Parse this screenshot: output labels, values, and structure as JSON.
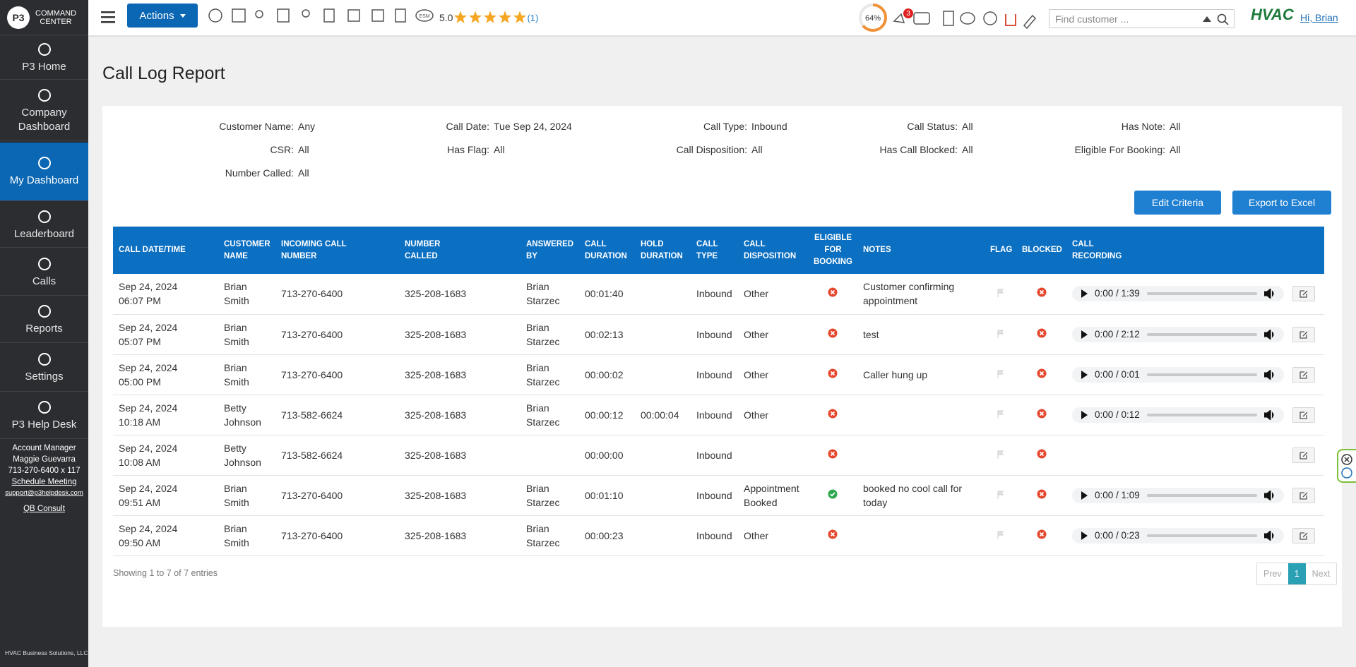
{
  "sidebar": {
    "logo": {
      "brand": "COMMAND",
      "sub": "CENTER"
    },
    "nav": [
      {
        "label": "P3 Home",
        "active": false
      },
      {
        "label": "Company Dashboard",
        "active": false
      },
      {
        "label": "My Dashboard",
        "active": true
      },
      {
        "label": "Leaderboard",
        "active": false
      },
      {
        "label": "Calls",
        "active": false
      },
      {
        "label": "Reports",
        "active": false
      },
      {
        "label": "Settings",
        "active": false
      },
      {
        "label": "P3 Help Desk",
        "active": false
      }
    ],
    "account": {
      "title": "Account Manager",
      "name": "Maggie Guevarra",
      "phone": "713-270-6400 x 117",
      "schedule": "Schedule Meeting",
      "email": "support@p3helpdesk.com",
      "qb": "QB Consult"
    },
    "footer": "HVAC Business Solutions, LLC"
  },
  "topbar": {
    "actions": "Actions",
    "esm": "ESM",
    "rating": "5.0",
    "rating_count": "(1)",
    "progress": {
      "value": 64,
      "label": "64%"
    },
    "notifications": "3",
    "search_placeholder": "Find customer ...",
    "brand": "HVAC",
    "greeting": "Hi, Brian"
  },
  "page": {
    "title": "Call Log Report"
  },
  "criteria": [
    {
      "label": "Customer Name:",
      "value": "Any"
    },
    {
      "label": "Call Date:",
      "value": "Tue Sep 24, 2024"
    },
    {
      "label": "Call Type:",
      "value": "Inbound"
    },
    {
      "label": "Call Status:",
      "value": "All"
    },
    {
      "label": "Has Note:",
      "value": "All"
    },
    {
      "label": "CSR:",
      "value": "All"
    },
    {
      "label": "Has Flag:",
      "value": "All"
    },
    {
      "label": "Call Disposition:",
      "value": "All"
    },
    {
      "label": "Has Call Blocked:",
      "value": "All"
    },
    {
      "label": "Eligible For Booking:",
      "value": "All"
    },
    {
      "label": "Number Called:",
      "value": "All"
    }
  ],
  "buttons": {
    "edit": "Edit Criteria",
    "export": "Export to Excel"
  },
  "table": {
    "headers": [
      "CALL DATE/TIME",
      "CUSTOMER NAME",
      "INCOMING CALL NUMBER",
      "NUMBER CALLED",
      "ANSWERED BY",
      "CALL DURATION",
      "HOLD DURATION",
      "CALL TYPE",
      "CALL DISPOSITION",
      "ELIGIBLE FOR BOOKING",
      "NOTES",
      "FLAG",
      "BLOCKED",
      "CALL RECORDING"
    ],
    "rows": [
      {
        "date": "Sep 24, 2024",
        "time": "06:07 PM",
        "customer": "Brian Smith",
        "incoming": "713-270-6400",
        "called": "325-208-1683",
        "answered_by": "Brian Starzec",
        "duration": "00:01:40",
        "hold": null,
        "type": "Inbound",
        "disposition": "Other",
        "eligible": false,
        "notes": "Customer confirming appointment",
        "blocked": false,
        "recording": "0:00 / 1:39"
      },
      {
        "date": "Sep 24, 2024",
        "time": "05:07 PM",
        "customer": "Brian Smith",
        "incoming": "713-270-6400",
        "called": "325-208-1683",
        "answered_by": "Brian Starzec",
        "duration": "00:02:13",
        "hold": null,
        "type": "Inbound",
        "disposition": "Other",
        "eligible": false,
        "notes": "test",
        "blocked": false,
        "recording": "0:00 / 2:12"
      },
      {
        "date": "Sep 24, 2024",
        "time": "05:00 PM",
        "customer": "Brian Smith",
        "incoming": "713-270-6400",
        "called": "325-208-1683",
        "answered_by": "Brian Starzec",
        "duration": "00:00:02",
        "hold": null,
        "type": "Inbound",
        "disposition": "Other",
        "eligible": false,
        "notes": "Caller hung up",
        "blocked": false,
        "recording": "0:00 / 0:01"
      },
      {
        "date": "Sep 24, 2024",
        "time": "10:18 AM",
        "customer": "Betty Johnson",
        "incoming": "713-582-6624",
        "called": "325-208-1683",
        "answered_by": "Brian Starzec",
        "duration": "00:00:12",
        "hold": "00:00:04",
        "type": "Inbound",
        "disposition": "Other",
        "eligible": false,
        "notes": null,
        "blocked": false,
        "recording": "0:00 / 0:12"
      },
      {
        "date": "Sep 24, 2024",
        "time": "10:08 AM",
        "customer": "Betty Johnson",
        "incoming": "713-582-6624",
        "called": "325-208-1683",
        "answered_by": null,
        "duration": "00:00:00",
        "hold": null,
        "type": "Inbound",
        "disposition": null,
        "eligible": false,
        "notes": null,
        "blocked": false,
        "recording": null
      },
      {
        "date": "Sep 24, 2024",
        "time": "09:51 AM",
        "customer": "Brian Smith",
        "incoming": "713-270-6400",
        "called": "325-208-1683",
        "answered_by": "Brian Starzec",
        "duration": "00:01:10",
        "hold": null,
        "type": "Inbound",
        "disposition": "Appointment Booked",
        "eligible": true,
        "notes": "booked no cool call for today",
        "blocked": false,
        "recording": "0:00 / 1:09"
      },
      {
        "date": "Sep 24, 2024",
        "time": "09:50 AM",
        "customer": "Brian Smith",
        "incoming": "713-270-6400",
        "called": "325-208-1683",
        "answered_by": "Brian Starzec",
        "duration": "00:00:23",
        "hold": null,
        "type": "Inbound",
        "disposition": "Other",
        "eligible": false,
        "notes": null,
        "blocked": false,
        "recording": "0:00 / 0:23"
      }
    ]
  },
  "footer": {
    "info": "Showing 1 to 7 of 7 entries",
    "prev": "Prev",
    "page": "1",
    "next": "Next"
  }
}
